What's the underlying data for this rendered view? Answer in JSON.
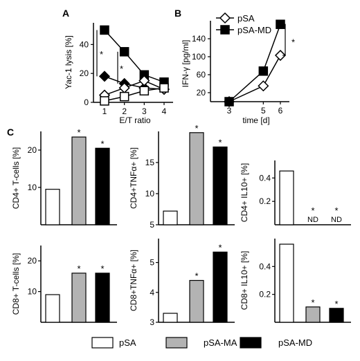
{
  "chart_data": [
    {
      "panel": "A",
      "type": "line",
      "xlabel": "E/T ratio",
      "ylabel": "Yac-1 lysis [%]",
      "x": [
        1,
        2,
        3,
        4
      ],
      "xticks": [
        "1",
        "2",
        "3",
        "4"
      ],
      "yticks": [
        "0",
        "20",
        "40"
      ],
      "ylim": [
        0,
        55
      ],
      "grid": false,
      "series": [
        {
          "marker": "filled-square",
          "values": [
            50,
            35,
            19,
            14
          ]
        },
        {
          "marker": "filled-diamond",
          "values": [
            18,
            13,
            10,
            9
          ]
        },
        {
          "marker": "open-diamond",
          "values": [
            5,
            10,
            15,
            9
          ]
        },
        {
          "marker": "open-square",
          "values": [
            1,
            4,
            8,
            10
          ]
        }
      ],
      "annotations": [
        "*",
        "*"
      ]
    },
    {
      "panel": "B",
      "type": "line",
      "xlabel": "time [d]",
      "ylabel": "IFN-γ [pg/ml]",
      "x": [
        3,
        5,
        6
      ],
      "xticks": [
        "3",
        "5",
        "6"
      ],
      "yticks": [
        "20",
        "60",
        "100",
        "140"
      ],
      "ylim": [
        0,
        180
      ],
      "grid": false,
      "legend": "top-left",
      "series": [
        {
          "name": "pSA",
          "marker": "open-diamond",
          "values": [
            0,
            35,
            103
          ]
        },
        {
          "name": "pSA-MD",
          "marker": "filled-square",
          "values": [
            0,
            68,
            172
          ]
        }
      ],
      "annotations": [
        "*"
      ]
    },
    {
      "panel": "C",
      "type": "bar",
      "categories": [
        "pSA",
        "pSA-MA",
        "pSA-MD"
      ],
      "legend": "bottom",
      "colors": {
        "pSA": "#ffffff",
        "pSA-MA": "#b3b3b3",
        "pSA-MD": "#000000"
      },
      "subplots": [
        {
          "ylabel": "CD4+ T-cells [%]",
          "yticks": [
            "10",
            "20"
          ],
          "ylim": [
            0,
            25
          ],
          "values": [
            9.5,
            23.5,
            20.5
          ],
          "marks": [
            "",
            "*",
            "*"
          ]
        },
        {
          "ylabel": "CD4+TNFα+ [%]",
          "yticks": [
            "5",
            "10",
            "15"
          ],
          "ylim": [
            5,
            20
          ],
          "values": [
            7.2,
            19.8,
            17.5
          ],
          "marks": [
            "",
            "*",
            "*"
          ]
        },
        {
          "ylabel": "CD4+ IL10+ [%]",
          "yticks": [
            "0.2",
            "0.4"
          ],
          "ylim": [
            0,
            0.55
          ],
          "values": [
            0.46,
            null,
            null
          ],
          "marks": [
            "",
            "*",
            "*"
          ],
          "value_labels": [
            "",
            "ND",
            "ND"
          ]
        },
        {
          "ylabel": "CD8+ T-cells [%]",
          "yticks": [
            "10",
            "20"
          ],
          "ylim": [
            0,
            25
          ],
          "values": [
            9,
            16,
            16
          ],
          "marks": [
            "",
            "*",
            "*"
          ]
        },
        {
          "ylabel": "CD8+TNFα+ [%]",
          "yticks": [
            "3",
            "4",
            "5"
          ],
          "ylim": [
            3,
            5.8
          ],
          "values": [
            3.3,
            4.4,
            5.35
          ],
          "marks": [
            "",
            "*",
            "*"
          ]
        },
        {
          "ylabel": "CD8+ IL10+ [%]",
          "yticks": [
            "0.2",
            "0.4"
          ],
          "ylim": [
            0,
            0.6
          ],
          "values": [
            0.56,
            0.11,
            0.1
          ],
          "marks": [
            "",
            "*",
            "*"
          ]
        }
      ]
    }
  ],
  "panel_labels": {
    "a": "A",
    "b": "B",
    "c": "C"
  }
}
